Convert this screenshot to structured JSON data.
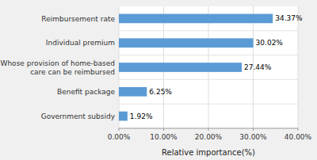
{
  "chart_data": {
    "type": "bar",
    "orientation": "horizontal",
    "categories": [
      "Government subsidy",
      "Benefit package",
      "Whose provision of home-based\ncare can be reimbursed",
      "Individual premium",
      "Reimbursement rate"
    ],
    "values": [
      1.92,
      6.25,
      27.44,
      30.02,
      34.37
    ],
    "value_labels": [
      "1.92%",
      "6.25%",
      "27.44%",
      "30.02%",
      "34.37%"
    ],
    "data_labels": true,
    "color": "#5b9bd5",
    "xlabel": "Relative importance(%)",
    "xlim": [
      0,
      40
    ],
    "xticks": [
      {
        "value": 0,
        "label": "0.00%"
      },
      {
        "value": 10,
        "label": "10.00%"
      },
      {
        "value": 20,
        "label": "20.00%"
      },
      {
        "value": 30,
        "label": "30.00%"
      },
      {
        "value": 40,
        "label": "40.00%"
      }
    ],
    "grid": true
  }
}
